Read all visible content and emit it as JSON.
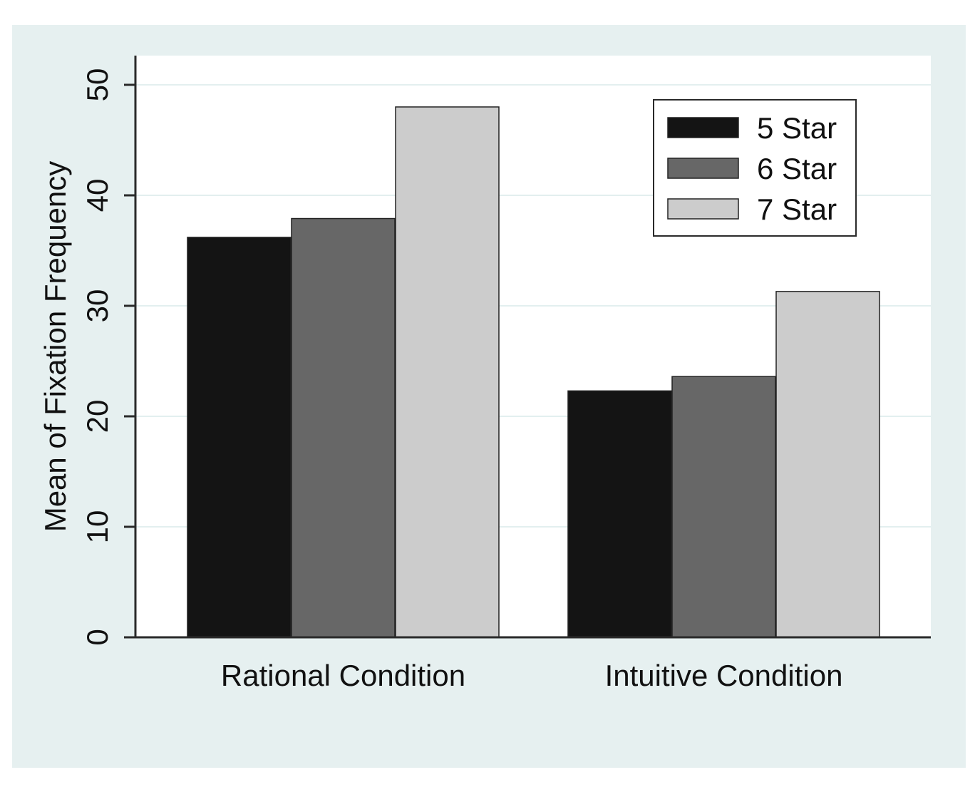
{
  "colors": {
    "outer_background": "#e6f0f0",
    "plot_background": "#ffffff",
    "gridline": "#e3efef",
    "axis": "#2a2a2a",
    "bar_outline": "#222222"
  },
  "chart_data": {
    "type": "bar",
    "title": "",
    "xlabel": "",
    "ylabel": "Mean of Fixation Frequency",
    "ylim": [
      0,
      52.5
    ],
    "yticks": [
      0,
      10,
      20,
      30,
      40,
      50
    ],
    "grid": true,
    "legend_position": "top-right",
    "categories": [
      "Rational Condition",
      "Intuitive Condition"
    ],
    "series": [
      {
        "name": "5 Star",
        "color": "#141414",
        "values": [
          36.2,
          22.3
        ]
      },
      {
        "name": "6 Star",
        "color": "#676767",
        "values": [
          37.9,
          23.6
        ]
      },
      {
        "name": "7 Star",
        "color": "#cccccc",
        "values": [
          48.0,
          31.3
        ]
      }
    ]
  }
}
